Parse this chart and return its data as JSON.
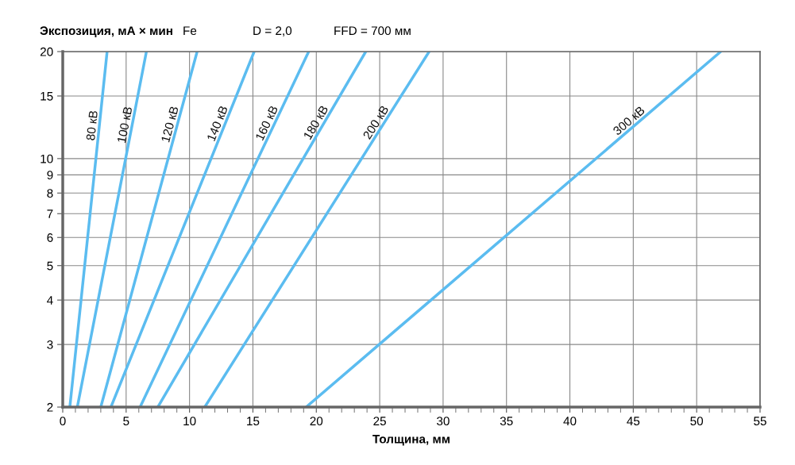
{
  "chart_data": {
    "type": "line",
    "ylabel": "Экспозиция, мА × мин",
    "xlabel": "Толщина, мм",
    "annotations": [
      "Fe",
      "D = 2,0",
      "FFD = 700 мм"
    ],
    "log": "y",
    "grid": true,
    "legend": false,
    "marker": "none",
    "line_style": "solid",
    "xlim": [
      0,
      55
    ],
    "xticks": [
      0,
      5,
      10,
      15,
      20,
      25,
      30,
      35,
      40,
      45,
      50,
      55
    ],
    "ylim": [
      2,
      20
    ],
    "yticks": [
      2,
      3,
      4,
      5,
      6,
      7,
      8,
      9,
      10,
      15,
      20
    ],
    "series": [
      {
        "name": "80 кВ",
        "color": "#5bbcf0",
        "x": [
          0.56,
          3.5
        ],
        "values": [
          2,
          20
        ]
      },
      {
        "name": "100 кВ",
        "color": "#5bbcf0",
        "x": [
          1.15,
          6.6
        ],
        "values": [
          2,
          20
        ]
      },
      {
        "name": "120 кВ",
        "color": "#5bbcf0",
        "x": [
          3.0,
          10.6
        ],
        "values": [
          2,
          20
        ]
      },
      {
        "name": "140 кВ",
        "color": "#5bbcf0",
        "x": [
          3.8,
          15.1
        ],
        "values": [
          2,
          20
        ]
      },
      {
        "name": "160 кВ",
        "color": "#5bbcf0",
        "x": [
          6.1,
          19.4
        ],
        "values": [
          2,
          20
        ]
      },
      {
        "name": "180 кВ",
        "color": "#5bbcf0",
        "x": [
          7.5,
          23.9
        ],
        "values": [
          2,
          20
        ]
      },
      {
        "name": "200 кВ",
        "color": "#5bbcf0",
        "x": [
          11.2,
          28.9
        ],
        "values": [
          2,
          20
        ]
      },
      {
        "name": "300 кВ",
        "color": "#5bbcf0",
        "x": [
          19.2,
          51.9
        ],
        "values": [
          2,
          20
        ]
      }
    ]
  }
}
